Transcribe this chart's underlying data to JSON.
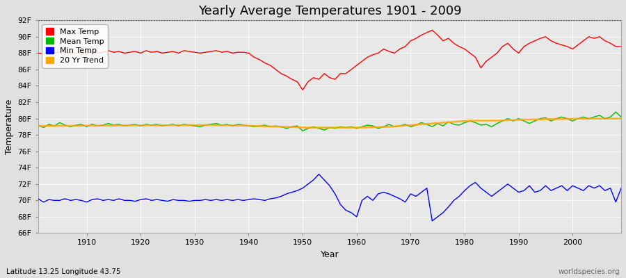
{
  "title": "Yearly Average Temperatures 1901 - 2009",
  "xlabel": "Year",
  "ylabel": "Temperature",
  "subtitle_left": "Latitude 13.25 Longitude 43.75",
  "subtitle_right": "worldspecies.org",
  "years": [
    1901,
    1902,
    1903,
    1904,
    1905,
    1906,
    1907,
    1908,
    1909,
    1910,
    1911,
    1912,
    1913,
    1914,
    1915,
    1916,
    1917,
    1918,
    1919,
    1920,
    1921,
    1922,
    1923,
    1924,
    1925,
    1926,
    1927,
    1928,
    1929,
    1930,
    1931,
    1932,
    1933,
    1934,
    1935,
    1936,
    1937,
    1938,
    1939,
    1940,
    1941,
    1942,
    1943,
    1944,
    1945,
    1946,
    1947,
    1948,
    1949,
    1950,
    1951,
    1952,
    1953,
    1954,
    1955,
    1956,
    1957,
    1958,
    1959,
    1960,
    1961,
    1962,
    1963,
    1964,
    1965,
    1966,
    1967,
    1968,
    1969,
    1970,
    1971,
    1972,
    1973,
    1974,
    1975,
    1976,
    1977,
    1978,
    1979,
    1980,
    1981,
    1982,
    1983,
    1984,
    1985,
    1986,
    1987,
    1988,
    1989,
    1990,
    1991,
    1992,
    1993,
    1994,
    1995,
    1996,
    1997,
    1998,
    1999,
    2000,
    2001,
    2002,
    2003,
    2004,
    2005,
    2006,
    2007,
    2008,
    2009
  ],
  "max_temp": [
    88.0,
    87.9,
    88.1,
    88.0,
    88.2,
    88.1,
    87.9,
    88.0,
    88.1,
    87.9,
    88.2,
    88.0,
    88.1,
    88.3,
    88.1,
    88.2,
    88.0,
    88.1,
    88.2,
    88.0,
    88.3,
    88.1,
    88.2,
    88.0,
    88.1,
    88.2,
    88.0,
    88.3,
    88.2,
    88.1,
    88.0,
    88.1,
    88.2,
    88.3,
    88.1,
    88.2,
    88.0,
    88.1,
    88.1,
    88.0,
    87.5,
    87.2,
    86.8,
    86.5,
    86.0,
    85.5,
    85.2,
    84.8,
    84.5,
    83.5,
    84.5,
    85.0,
    84.8,
    85.5,
    85.0,
    84.8,
    85.5,
    85.5,
    86.0,
    86.5,
    87.0,
    87.5,
    87.8,
    88.0,
    88.5,
    88.2,
    88.0,
    88.5,
    88.8,
    89.5,
    89.8,
    90.2,
    90.5,
    90.8,
    90.2,
    89.5,
    89.8,
    89.2,
    88.8,
    88.5,
    88.0,
    87.5,
    86.2,
    87.0,
    87.5,
    88.0,
    88.8,
    89.2,
    88.5,
    88.0,
    88.8,
    89.2,
    89.5,
    89.8,
    90.0,
    89.5,
    89.2,
    89.0,
    88.8,
    88.5,
    89.0,
    89.5,
    90.0,
    89.8,
    90.0,
    89.5,
    89.2,
    88.8,
    88.8
  ],
  "mean_temp": [
    79.2,
    78.9,
    79.3,
    79.1,
    79.5,
    79.2,
    79.0,
    79.2,
    79.3,
    79.0,
    79.3,
    79.1,
    79.2,
    79.4,
    79.2,
    79.3,
    79.1,
    79.2,
    79.3,
    79.1,
    79.3,
    79.2,
    79.3,
    79.1,
    79.2,
    79.3,
    79.1,
    79.3,
    79.2,
    79.1,
    79.0,
    79.2,
    79.3,
    79.4,
    79.2,
    79.3,
    79.1,
    79.3,
    79.2,
    79.1,
    79.0,
    79.1,
    79.2,
    79.0,
    79.1,
    79.0,
    78.8,
    79.0,
    79.1,
    78.5,
    78.8,
    79.0,
    78.8,
    78.6,
    78.9,
    78.8,
    79.0,
    78.9,
    79.0,
    78.8,
    79.0,
    79.2,
    79.1,
    78.8,
    79.0,
    79.3,
    79.0,
    79.1,
    79.3,
    79.0,
    79.2,
    79.5,
    79.3,
    79.0,
    79.4,
    79.1,
    79.6,
    79.3,
    79.2,
    79.5,
    79.7,
    79.5,
    79.2,
    79.3,
    79.0,
    79.4,
    79.7,
    80.0,
    79.7,
    80.0,
    79.7,
    79.4,
    79.7,
    80.0,
    80.1,
    79.7,
    80.0,
    80.2,
    80.0,
    79.7,
    80.0,
    80.2,
    80.0,
    80.2,
    80.4,
    80.0,
    80.2,
    80.8,
    80.2
  ],
  "min_temp": [
    70.2,
    69.8,
    70.1,
    70.0,
    70.0,
    70.2,
    70.0,
    70.1,
    70.0,
    69.8,
    70.1,
    70.2,
    70.0,
    70.1,
    70.0,
    70.2,
    70.0,
    70.0,
    69.9,
    70.1,
    70.2,
    70.0,
    70.1,
    70.0,
    69.9,
    70.1,
    70.0,
    70.0,
    69.9,
    70.0,
    70.0,
    70.1,
    70.0,
    70.1,
    70.0,
    70.1,
    70.0,
    70.1,
    70.0,
    70.1,
    70.2,
    70.1,
    70.0,
    70.2,
    70.3,
    70.5,
    70.8,
    71.0,
    71.2,
    71.5,
    72.0,
    72.5,
    73.2,
    72.5,
    71.8,
    70.8,
    69.5,
    68.8,
    68.5,
    68.0,
    70.0,
    70.5,
    70.0,
    70.8,
    71.0,
    70.8,
    70.5,
    70.2,
    69.8,
    70.8,
    70.5,
    71.0,
    71.5,
    67.5,
    68.0,
    68.5,
    69.2,
    70.0,
    70.5,
    71.2,
    71.8,
    72.2,
    71.5,
    71.0,
    70.5,
    71.0,
    71.5,
    72.0,
    71.5,
    71.0,
    71.2,
    71.8,
    71.0,
    71.2,
    71.8,
    71.2,
    71.5,
    71.8,
    71.2,
    71.8,
    71.5,
    71.2,
    71.8,
    71.5,
    71.8,
    71.2,
    71.5,
    69.8,
    71.5
  ],
  "trend_temp": [
    79.1,
    79.1,
    79.1,
    79.1,
    79.12,
    79.12,
    79.12,
    79.12,
    79.13,
    79.13,
    79.13,
    79.13,
    79.14,
    79.14,
    79.14,
    79.15,
    79.15,
    79.15,
    79.16,
    79.16,
    79.17,
    79.17,
    79.17,
    79.18,
    79.18,
    79.19,
    79.19,
    79.19,
    79.2,
    79.2,
    79.2,
    79.2,
    79.2,
    79.19,
    79.18,
    79.17,
    79.16,
    79.15,
    79.14,
    79.12,
    79.1,
    79.08,
    79.06,
    79.04,
    79.02,
    79.0,
    78.98,
    78.96,
    78.94,
    78.92,
    78.9,
    78.9,
    78.9,
    78.9,
    78.9,
    78.9,
    78.9,
    78.9,
    78.9,
    78.9,
    78.9,
    78.92,
    78.94,
    78.96,
    78.98,
    79.0,
    79.05,
    79.1,
    79.15,
    79.2,
    79.25,
    79.3,
    79.35,
    79.4,
    79.45,
    79.5,
    79.55,
    79.6,
    79.65,
    79.7,
    79.75,
    79.75,
    79.75,
    79.75,
    79.75,
    79.75,
    79.78,
    79.8,
    79.82,
    79.85,
    79.87,
    79.88,
    79.89,
    79.9,
    79.92,
    79.93,
    79.94,
    79.95,
    79.96,
    79.97,
    79.98,
    79.98,
    79.98,
    79.99,
    79.99,
    79.99,
    79.99,
    79.99,
    80.0
  ],
  "max_color": "#ff0000",
  "mean_color": "#00bb00",
  "min_color": "#0000ff",
  "trend_color": "#ffa500",
  "bg_color": "#e0e0e0",
  "plot_bg_color": "#e8e8e8",
  "grid_color": "#ffffff",
  "ylim": [
    66,
    92
  ],
  "yticks": [
    66,
    68,
    70,
    72,
    74,
    76,
    78,
    80,
    82,
    84,
    86,
    88,
    90,
    92
  ],
  "ytick_labels": [
    "66F",
    "68F",
    "70F",
    "72F",
    "74F",
    "76F",
    "78F",
    "80F",
    "82F",
    "84F",
    "86F",
    "88F",
    "90F",
    "92F"
  ],
  "xlim": [
    1901,
    2009
  ],
  "xticks": [
    1910,
    1920,
    1930,
    1940,
    1950,
    1960,
    1970,
    1980,
    1990,
    2000
  ],
  "title_fontsize": 13,
  "axis_label_fontsize": 9,
  "tick_fontsize": 8,
  "legend_fontsize": 8,
  "line_width": 1.0
}
